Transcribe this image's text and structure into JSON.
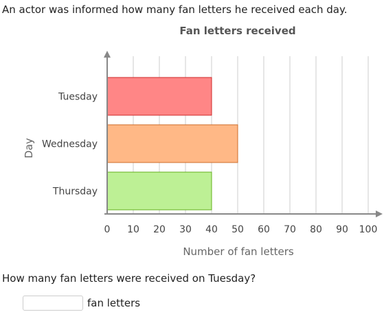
{
  "problem": {
    "text": "An actor was informed how many fan letters he received each day.",
    "question": "How many fan letters were received on Tuesday?",
    "answer_value": "",
    "answer_unit": "fan letters"
  },
  "chart_data": {
    "type": "bar",
    "orientation": "horizontal",
    "title": "Fan letters received",
    "xlabel": "Number of fan letters",
    "ylabel": "Day",
    "categories": [
      "Tuesday",
      "Wednesday",
      "Thursday"
    ],
    "values": [
      40,
      50,
      40
    ],
    "xlim": [
      0,
      100
    ],
    "xticks": [
      0,
      10,
      20,
      30,
      40,
      50,
      60,
      70,
      80,
      90,
      100
    ],
    "grid": "vertical",
    "colors": {
      "fills": [
        "#ff8686",
        "#ffb886",
        "#bdf095"
      ],
      "strokes": [
        "#cc2a2a",
        "#cc6d2a",
        "#63b01c"
      ],
      "grid": "#cccccc",
      "axis": "#888888",
      "title": "#555555",
      "text": "#444444"
    }
  }
}
